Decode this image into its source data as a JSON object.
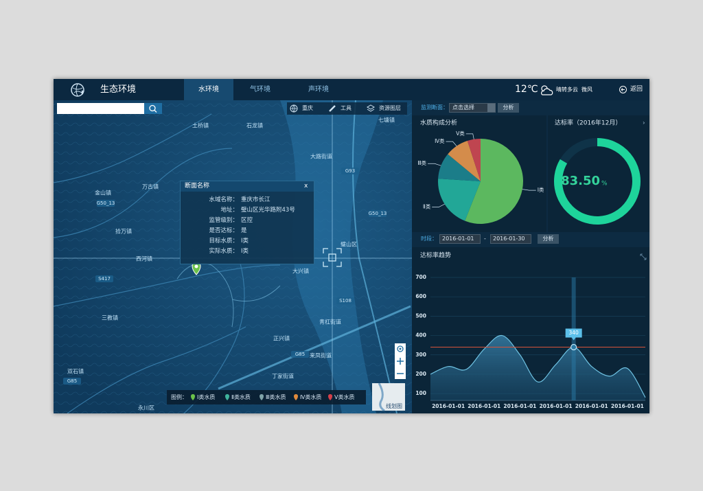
{
  "header": {
    "title": "生态环境",
    "tabs": [
      "水环境",
      "气环境",
      "声环境"
    ],
    "temperature": "12℃",
    "weather": "晴转多云",
    "wind": "微风",
    "back": "返回"
  },
  "map": {
    "toolbar": [
      "重庆",
      "工具",
      "资源图层"
    ],
    "labels": [
      "土桥镇",
      "石龙镇",
      "七塘镇",
      "大路街道",
      "万古镇",
      "金山镇",
      "拾万镇",
      "西河镇",
      "璧山区",
      "大兴镇",
      "三教镇",
      "青杠街道",
      "正兴镇",
      "来凤街道",
      "丁家街道",
      "双石镇",
      "永川区"
    ],
    "roads": [
      "G93",
      "G85",
      "S108",
      "S417",
      "G85",
      "G50_13",
      "G50_13"
    ],
    "minimap": "线划图",
    "legend": {
      "title": "图例：",
      "items": [
        {
          "label": "Ⅰ类水质",
          "color": "#6cc24a"
        },
        {
          "label": "Ⅱ类水质",
          "color": "#3fb39c"
        },
        {
          "label": "Ⅲ类水质",
          "color": "#7fa3a8"
        },
        {
          "label": "Ⅳ类水质",
          "color": "#e08a3c"
        },
        {
          "label": "Ⅴ类水质",
          "color": "#d6404a"
        }
      ]
    }
  },
  "popup": {
    "title": "断面名称",
    "close": "x",
    "rows": [
      [
        "水域名称：",
        "重庆市长江"
      ],
      [
        "地址：",
        "璧山区光华路附43号"
      ],
      [
        "监管级别：",
        "区控"
      ],
      [
        "是否达标：",
        "是"
      ],
      [
        "目标水质：",
        "Ⅰ类"
      ],
      [
        "实际水质：",
        "Ⅰ类"
      ]
    ]
  },
  "filters": {
    "section_label": "监测断面：",
    "section_select": "点击选择",
    "analyze": "分析",
    "period_label": "时段：",
    "start": "2016-01-01",
    "dash": "-",
    "end": "2016-01-30",
    "analyze2": "分析"
  },
  "chart_data": [
    {
      "type": "pie",
      "title": "水质构成分析",
      "categories": [
        "Ⅰ类",
        "Ⅱ类",
        "Ⅲ类",
        "Ⅳ类",
        "Ⅴ类"
      ],
      "values": [
        56,
        20,
        10,
        9,
        5
      ],
      "colors": [
        "#5cb85f",
        "#22a797",
        "#1b7d89",
        "#d48c4b",
        "#bf4550"
      ]
    },
    {
      "type": "gauge",
      "title": "达标率（2016年12月）",
      "value": 83.5,
      "value_label": "83.50",
      "unit": "%",
      "ylim": [
        0,
        100
      ],
      "color": "#1ed49b"
    },
    {
      "type": "area",
      "title": "达标率趋势",
      "categories": [
        null,
        "2016-01-01",
        null,
        "2016-01-01",
        null,
        "2016-01-01",
        null,
        "2016-01-01",
        null,
        "2016-01-01",
        null,
        "2016-01-01",
        null
      ],
      "series": [
        {
          "name": "达标率",
          "color": "#6fc3e3",
          "values": [
            200,
            240,
            225,
            330,
            400,
            300,
            160,
            250,
            340,
            240,
            190,
            230,
            80
          ]
        }
      ],
      "ylim": [
        65,
        700
      ],
      "yticks": [
        100,
        200,
        300,
        400,
        500,
        600,
        700
      ],
      "grid": true,
      "tooltip_index": 8,
      "markline_color": "#d9543a"
    }
  ]
}
